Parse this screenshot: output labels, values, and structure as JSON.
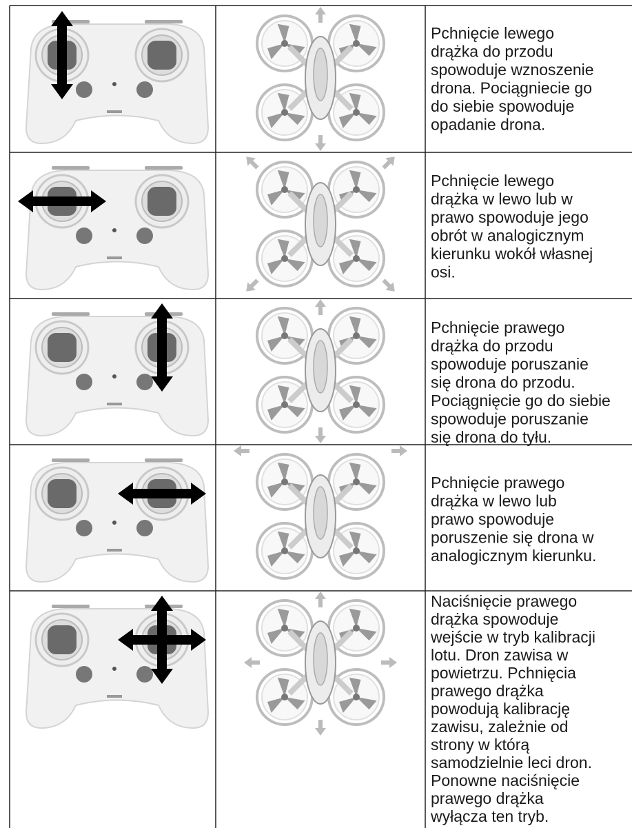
{
  "table": {
    "rows": [
      {
        "text": [
          "Pchnięcie lewego",
          "drążka do przodu",
          "spowoduje wznoszenie",
          "drona. Pociągniecie go",
          "do siebie spowoduje",
          "opadanie drona."
        ]
      },
      {
        "text": [
          "Pchnięcie lewego",
          "drążka w lewo lub w",
          "prawo spowoduje jego",
          "obrót w analogicznym",
          "kierunku wokół własnej",
          "osi."
        ]
      },
      {
        "text": [
          "Pchnięcie prawego",
          "drążka do przodu",
          "spowoduje poruszanie",
          "się drona do przodu.",
          "Pociągnięcie go do siebie",
          "spowoduje poruszanie",
          "się drona do tyłu."
        ]
      },
      {
        "text": [
          "Pchnięcie prawego",
          "drążka w lewo lub",
          "prawo spowoduje",
          "poruszenie się drona w",
          "analogicznym kierunku."
        ]
      },
      {
        "text": [
          "Naciśnięcie prawego",
          "drążka spowoduje",
          "wejście w tryb kalibracji",
          "lotu. Dron zawisa w",
          "powietrzu. Pchnięcia",
          "prawego drążka",
          "powodują kalibrację",
          "zawisu, zależnie od",
          "strony w którą",
          "samodzielnie leci dron.",
          "Ponowne naciśnięcie",
          "prawego drążka",
          "wyłącza ten tryb."
        ]
      }
    ]
  }
}
